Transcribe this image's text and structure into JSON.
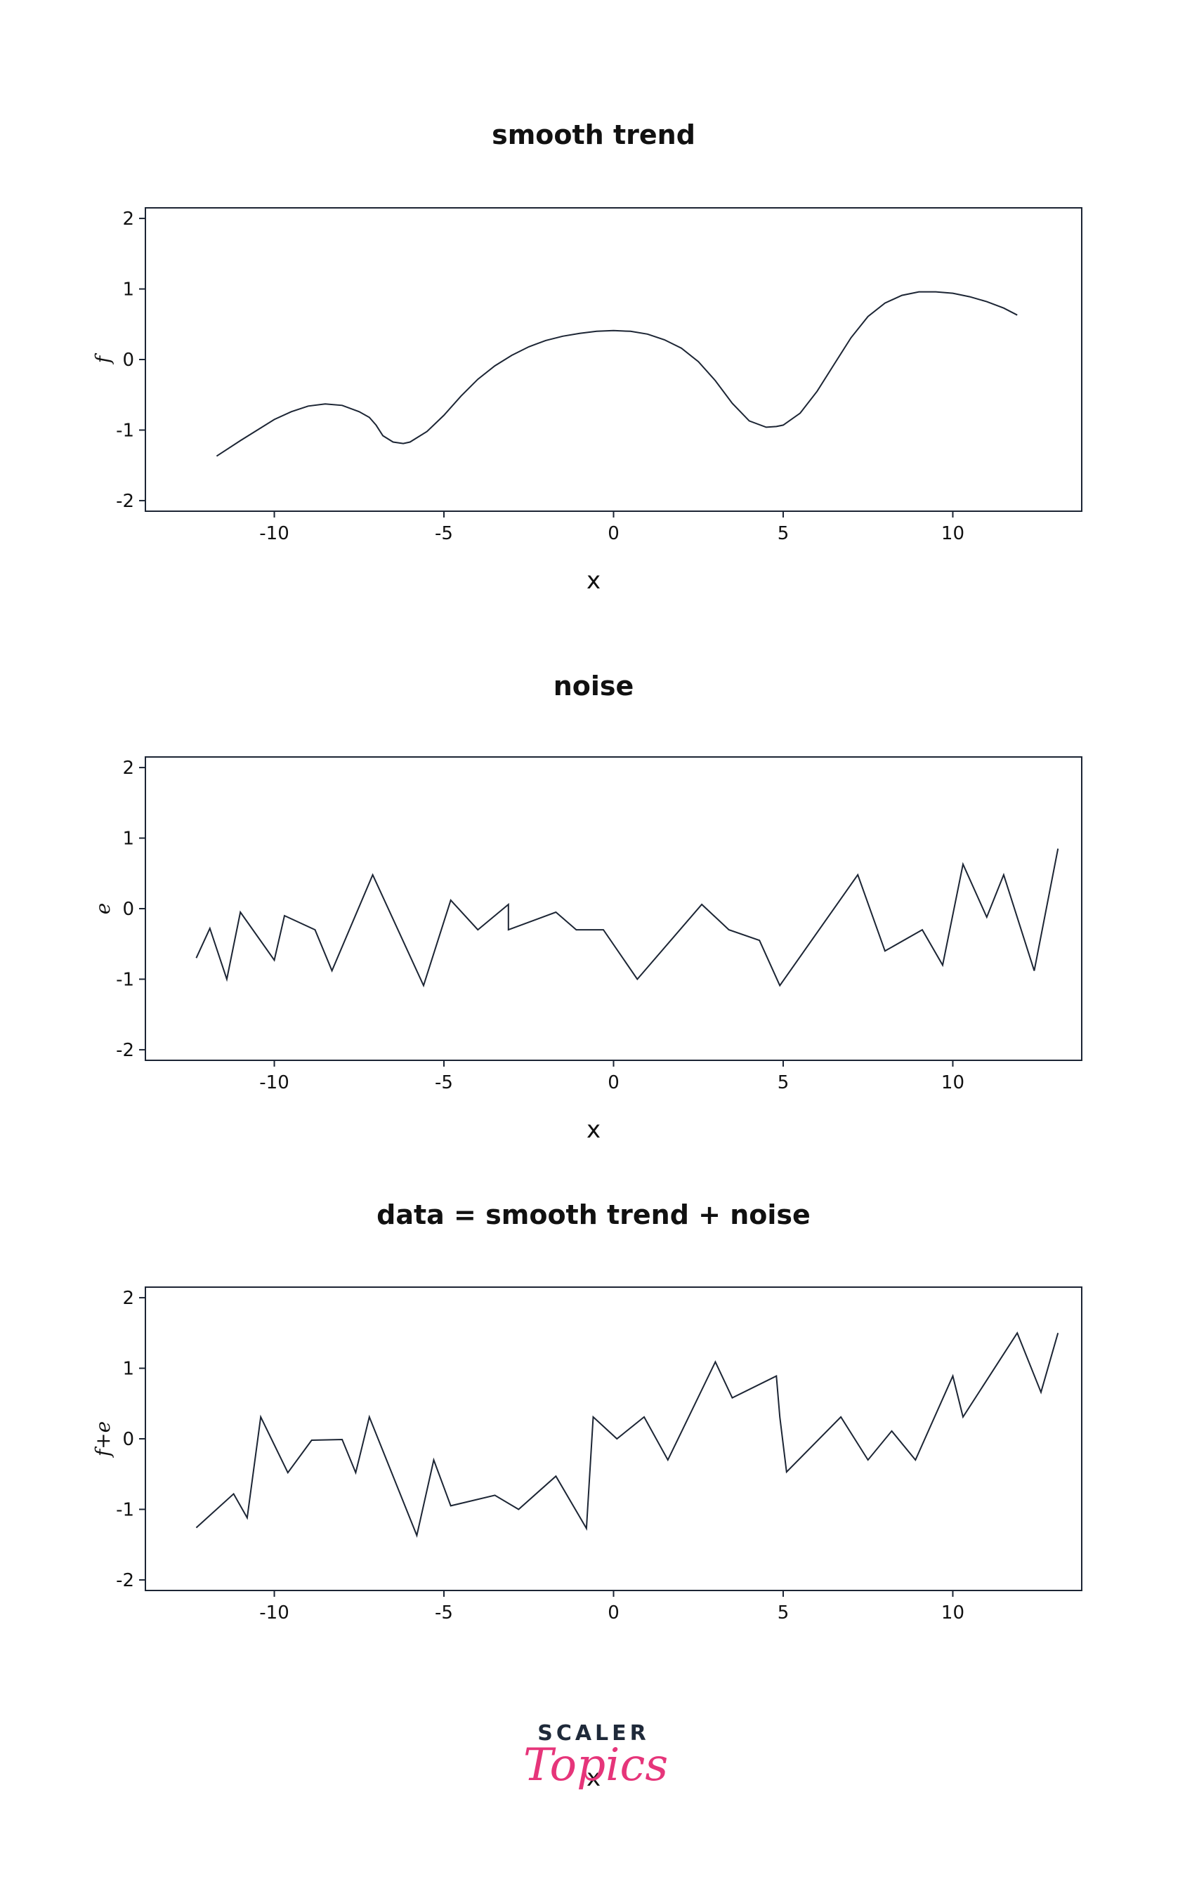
{
  "chart_data": [
    {
      "type": "line",
      "title": "smooth trend",
      "xlabel": "x",
      "ylabel": "f",
      "xlim": [
        -13.8,
        13.8
      ],
      "ylim": [
        -2.15,
        2.15
      ],
      "xticks": [
        -10,
        -5,
        0,
        5,
        10
      ],
      "xtick_labels": [
        "-10",
        "-5",
        "0",
        "5",
        "10"
      ],
      "yticks": [
        -2,
        -1,
        0,
        1,
        2
      ],
      "ytick_labels": [
        "-2",
        "-1",
        "0",
        "1",
        "2"
      ],
      "color": "#1c2534",
      "x": [
        -11.7,
        -11.0,
        -10.0,
        -9.5,
        -9.0,
        -8.5,
        -8.0,
        -7.5,
        -7.2,
        -7.0,
        -6.8,
        -6.5,
        -6.2,
        -6.0,
        -5.5,
        -5.0,
        -4.5,
        -4.0,
        -3.5,
        -3.0,
        -2.5,
        -2.0,
        -1.5,
        -1.0,
        -0.5,
        0.0,
        0.5,
        1.0,
        1.5,
        2.0,
        2.5,
        3.0,
        3.5,
        4.0,
        4.5,
        4.8,
        5.0,
        5.5,
        6.0,
        6.5,
        7.0,
        7.5,
        8.0,
        8.5,
        9.0,
        9.5,
        10.0,
        10.5,
        11.0,
        11.5,
        11.9
      ],
      "y": [
        -1.37,
        -1.15,
        -0.85,
        -0.74,
        -0.66,
        -0.63,
        -0.65,
        -0.74,
        -0.82,
        -0.93,
        -1.08,
        -1.17,
        -1.19,
        -1.17,
        -1.02,
        -0.79,
        -0.52,
        -0.28,
        -0.09,
        0.06,
        0.18,
        0.27,
        0.33,
        0.37,
        0.4,
        0.41,
        0.4,
        0.36,
        0.28,
        0.16,
        -0.03,
        -0.3,
        -0.62,
        -0.87,
        -0.96,
        -0.95,
        -0.93,
        -0.76,
        -0.45,
        -0.07,
        0.31,
        0.61,
        0.8,
        0.91,
        0.96,
        0.96,
        0.94,
        0.89,
        0.82,
        0.73,
        0.63
      ]
    },
    {
      "type": "line",
      "title": "noise",
      "xlabel": "x",
      "ylabel": "e",
      "xlim": [
        -13.8,
        13.8
      ],
      "ylim": [
        -2.15,
        2.15
      ],
      "xticks": [
        -10,
        -5,
        0,
        5,
        10
      ],
      "xtick_labels": [
        "-10",
        "-5",
        "0",
        "5",
        "10"
      ],
      "yticks": [
        -2,
        -1,
        0,
        1,
        2
      ],
      "ytick_labels": [
        "-2",
        "-1",
        "0",
        "1",
        "2"
      ],
      "color": "#1c2534",
      "x": [
        -12.3,
        -11.9,
        -11.4,
        -11.0,
        -10.0,
        -9.7,
        -8.8,
        -8.3,
        -7.1,
        -5.6,
        -4.8,
        -4.0,
        -3.1,
        -3.1,
        -1.7,
        -1.1,
        -0.3,
        0.7,
        2.6,
        3.4,
        4.3,
        4.9,
        7.2,
        8.0,
        9.1,
        9.7,
        10.3,
        11.0,
        11.5,
        12.4,
        13.1
      ],
      "y": [
        -0.7,
        -0.28,
        -1.0,
        -0.05,
        -0.73,
        -0.1,
        -0.3,
        -0.88,
        0.48,
        -1.09,
        0.12,
        -0.3,
        0.06,
        -0.3,
        -0.05,
        -0.3,
        -0.3,
        -1.0,
        0.06,
        -0.3,
        -0.45,
        -1.09,
        0.48,
        -0.6,
        -0.3,
        -0.8,
        0.63,
        -0.12,
        0.48,
        -0.88,
        0.85
      ]
    },
    {
      "type": "line",
      "title": "data = smooth trend + noise",
      "xlabel": "x",
      "ylabel": "f+e",
      "xlim": [
        -13.8,
        13.8
      ],
      "ylim": [
        -2.15,
        2.15
      ],
      "xticks": [
        -10,
        -5,
        0,
        5,
        10
      ],
      "xtick_labels": [
        "-10",
        "-5",
        "0",
        "5",
        "10"
      ],
      "yticks": [
        -2,
        -1,
        0,
        1,
        2
      ],
      "ytick_labels": [
        "-2",
        "-1",
        "0",
        "1",
        "2"
      ],
      "color": "#1c2534",
      "x": [
        -12.3,
        -11.2,
        -10.8,
        -10.4,
        -9.6,
        -8.9,
        -8.0,
        -7.6,
        -7.2,
        -5.8,
        -5.3,
        -4.8,
        -3.5,
        -2.8,
        -1.7,
        -0.8,
        -0.6,
        0.1,
        0.9,
        1.6,
        3.0,
        3.5,
        4.8,
        4.9,
        5.1,
        6.7,
        7.5,
        8.2,
        8.9,
        10.0,
        10.3,
        11.9,
        12.6,
        13.1
      ],
      "y": [
        -1.26,
        -0.78,
        -1.12,
        0.31,
        -0.48,
        -0.02,
        -0.01,
        -0.48,
        0.31,
        -1.37,
        -0.3,
        -0.95,
        -0.8,
        -1.0,
        -0.53,
        -1.27,
        0.31,
        0.0,
        0.31,
        -0.3,
        1.09,
        0.58,
        0.89,
        0.31,
        -0.47,
        0.31,
        -0.3,
        0.11,
        -0.3,
        0.89,
        0.31,
        1.5,
        0.66,
        1.5
      ]
    }
  ],
  "watermark": {
    "line1": "SCALER",
    "line2": "Topics",
    "color_dark": "#1f2a3a",
    "color_accent": "#e6357a"
  }
}
